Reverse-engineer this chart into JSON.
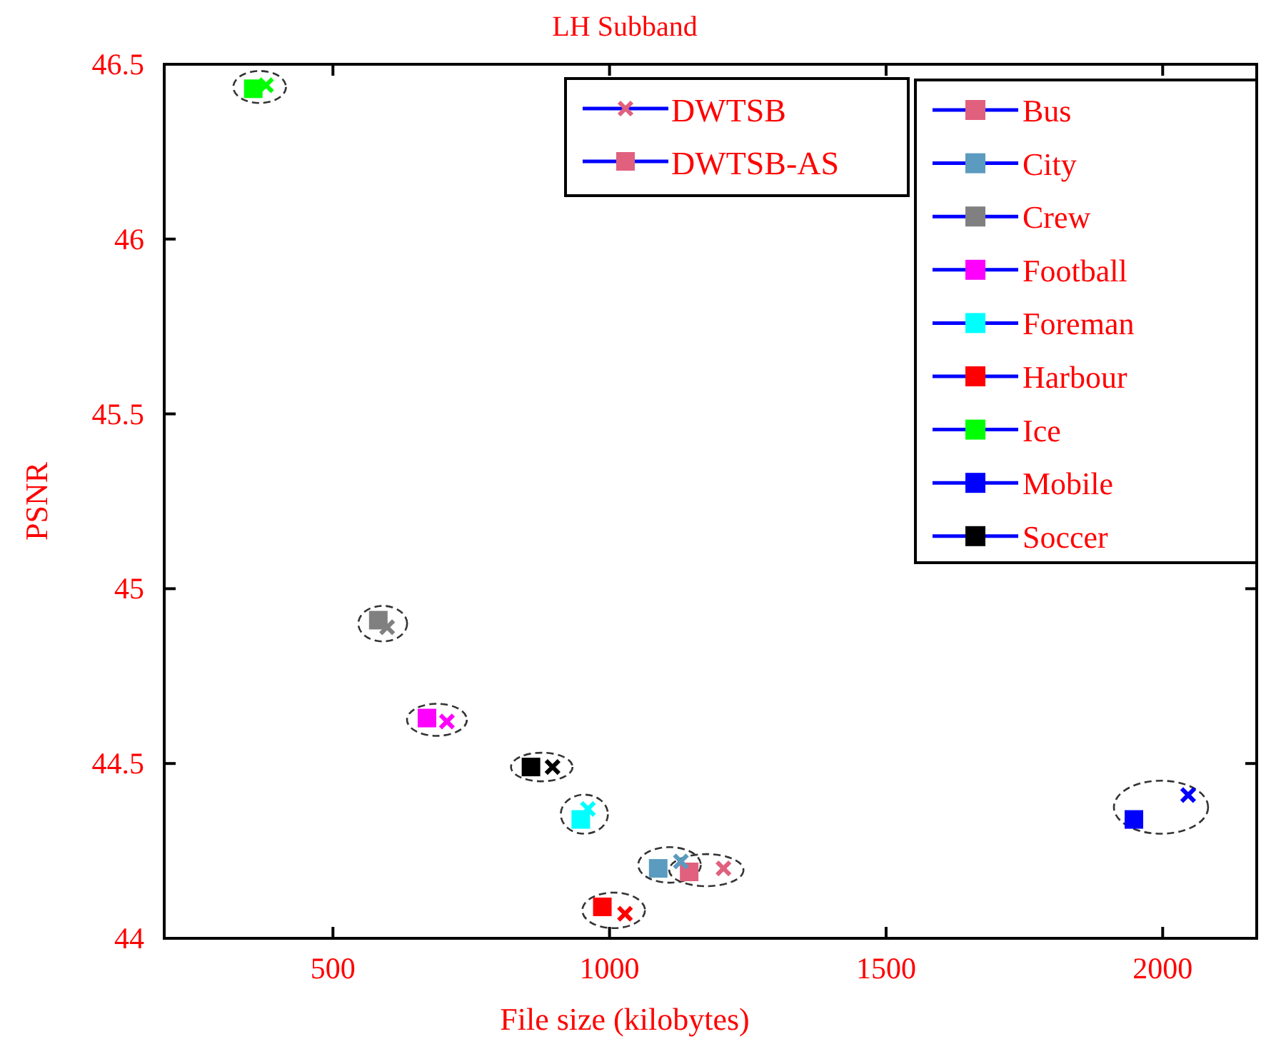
{
  "chart_data": {
    "type": "scatter",
    "title": "LH Subband",
    "xlabel": "File size (kilobytes)",
    "ylabel": "PSNR",
    "xlim": [
      195,
      2170
    ],
    "ylim": [
      44,
      46.5
    ],
    "xticks": [
      500,
      1000,
      1500,
      2000
    ],
    "yticks": [
      44,
      44.5,
      45,
      45.5,
      46,
      46.5
    ],
    "grid": false,
    "legend": "top right",
    "annotations": [
      "DWTSB",
      "DWTSB-AS"
    ],
    "series": [
      {
        "marker": "cross",
        "color": "#e0607e",
        "x": [
          1206
        ],
        "values": [
          44.2
        ]
      },
      {
        "name": "Bus",
        "marker": "square",
        "color": "#e0607e",
        "x": [
          1144
        ],
        "values": [
          44.19
        ]
      },
      {
        "marker": "cross",
        "color": "#5b9bbf",
        "x": [
          1129
        ],
        "values": [
          44.22
        ]
      },
      {
        "name": "City",
        "marker": "square",
        "color": "#5b9bbf",
        "x": [
          1088
        ],
        "values": [
          44.2
        ]
      },
      {
        "marker": "cross",
        "color": "#808080",
        "x": [
          598
        ],
        "values": [
          44.89
        ]
      },
      {
        "name": "Crew",
        "marker": "square",
        "color": "#808080",
        "x": [
          582
        ],
        "values": [
          44.91
        ]
      },
      {
        "marker": "cross",
        "color": "#ff00ff",
        "x": [
          706
        ],
        "values": [
          44.62
        ]
      },
      {
        "name": "Football",
        "marker": "square",
        "color": "#ff00ff",
        "x": [
          670
        ],
        "values": [
          44.63
        ]
      },
      {
        "marker": "cross",
        "color": "#00ffff",
        "x": [
          961
        ],
        "values": [
          44.37
        ]
      },
      {
        "name": "Foreman",
        "marker": "square",
        "color": "#00ffff",
        "x": [
          948
        ],
        "values": [
          44.34
        ]
      },
      {
        "marker": "cross",
        "color": "#ff0000",
        "x": [
          1028
        ],
        "values": [
          44.07
        ]
      },
      {
        "name": "Harbour",
        "marker": "square",
        "color": "#ff0000",
        "x": [
          987
        ],
        "values": [
          44.09
        ]
      },
      {
        "marker": "cross",
        "color": "#00ff00",
        "x": [
          379
        ],
        "values": [
          46.44
        ]
      },
      {
        "name": "Ice",
        "marker": "square",
        "color": "#00ff00",
        "x": [
          356
        ],
        "values": [
          46.43
        ]
      },
      {
        "marker": "cross",
        "color": "#0000ff",
        "x": [
          2046
        ],
        "values": [
          44.41
        ]
      },
      {
        "name": "Mobile",
        "marker": "square",
        "color": "#0000ff",
        "x": [
          1948
        ],
        "values": [
          44.34
        ]
      },
      {
        "marker": "cross",
        "color": "#000000",
        "x": [
          897
        ],
        "values": [
          44.49
        ]
      },
      {
        "name": "Soccer",
        "marker": "square",
        "color": "#000000",
        "x": [
          858
        ],
        "values": [
          44.49
        ]
      }
    ]
  }
}
